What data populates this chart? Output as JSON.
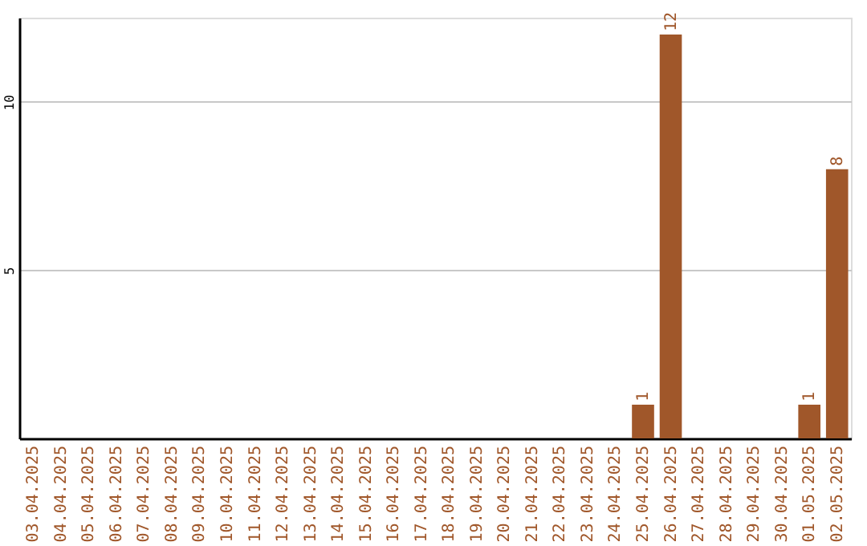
{
  "chart_data": {
    "type": "bar",
    "categories": [
      "03.04.2025",
      "04.04.2025",
      "05.04.2025",
      "06.04.2025",
      "07.04.2025",
      "08.04.2025",
      "09.04.2025",
      "10.04.2025",
      "11.04.2025",
      "12.04.2025",
      "13.04.2025",
      "14.04.2025",
      "15.04.2025",
      "16.04.2025",
      "17.04.2025",
      "18.04.2025",
      "19.04.2025",
      "20.04.2025",
      "21.04.2025",
      "22.04.2025",
      "23.04.2025",
      "24.04.2025",
      "25.04.2025",
      "26.04.2025",
      "27.04.2025",
      "28.04.2025",
      "29.04.2025",
      "30.04.2025",
      "01.05.2025",
      "02.05.2025"
    ],
    "values": [
      0,
      0,
      0,
      0,
      0,
      0,
      0,
      0,
      0,
      0,
      0,
      0,
      0,
      0,
      0,
      0,
      0,
      0,
      0,
      0,
      0,
      0,
      1,
      12,
      0,
      0,
      0,
      0,
      1,
      8
    ],
    "value_labels": [
      null,
      null,
      null,
      null,
      null,
      null,
      null,
      null,
      null,
      null,
      null,
      null,
      null,
      null,
      null,
      null,
      null,
      null,
      null,
      null,
      null,
      null,
      "1",
      "12",
      null,
      null,
      null,
      null,
      "1",
      "8"
    ],
    "color": "#a0572a",
    "ylim": [
      0,
      12.5
    ],
    "yticks": [
      5,
      10
    ],
    "grid": "y"
  }
}
